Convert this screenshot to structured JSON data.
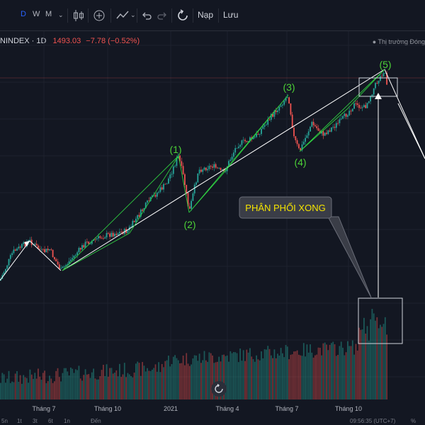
{
  "toolbar": {
    "intervals": [
      "D",
      "W",
      "M"
    ],
    "active_interval": "D",
    "load_label": "Nạp",
    "save_label": "Lưu"
  },
  "legend": {
    "symbol": "NINDEX · 1D",
    "last": "1493.03",
    "change": "−7.78 (−0.52%)"
  },
  "market_status": "● Thị trường Đóng",
  "x_axis_labels": [
    "Tháng 7",
    "Tháng 10",
    "2021",
    "Tháng 4",
    "Tháng 7",
    "Tháng 10"
  ],
  "annotation": "PHÂN PHỐI XONG",
  "waves": [
    "(1)",
    "(2)",
    "(3)",
    "(4)",
    "(5)"
  ],
  "colors": {
    "up": "#26a69a",
    "down": "#ef5350",
    "wave_label": "#4cd137",
    "channel": "#2ecc40",
    "trend": "#ffffff",
    "background": "#131722"
  },
  "bottom_bar": {
    "ranges": [
      "5n",
      "1t",
      "3t",
      "6t",
      "1n"
    ],
    "goto": "Đến",
    "time": "09:56:35 (UTC+7)",
    "percent": "%"
  }
}
